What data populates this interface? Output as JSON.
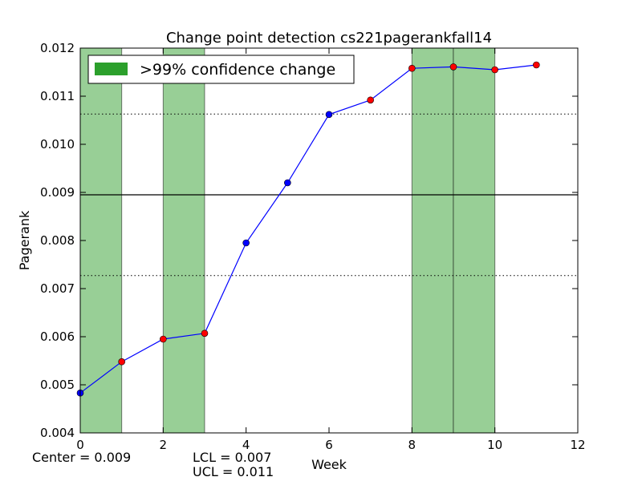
{
  "chart_data": {
    "type": "line",
    "title": "Change point detection cs221pagerankfall14",
    "xlabel": "Week",
    "ylabel": "Pagerank",
    "xlim": [
      0,
      12
    ],
    "ylim": [
      0.004,
      0.012
    ],
    "xticks": [
      0,
      2,
      4,
      6,
      8,
      10,
      12
    ],
    "xtick_labels": [
      "0",
      "2",
      "4",
      "6",
      "8",
      "10",
      "12"
    ],
    "yticks": [
      0.004,
      0.005,
      0.006,
      0.007,
      0.008,
      0.009,
      0.01,
      0.011,
      0.012
    ],
    "ytick_labels": [
      "0.004",
      "0.005",
      "0.006",
      "0.007",
      "0.008",
      "0.009",
      "0.010",
      "0.011",
      "0.012"
    ],
    "grid": false,
    "line_color": "#0000ff",
    "points": [
      {
        "x": 0,
        "y": 0.00483,
        "color": "#0000ff"
      },
      {
        "x": 1,
        "y": 0.00548,
        "color": "#ff0000"
      },
      {
        "x": 2,
        "y": 0.00595,
        "color": "#ff0000"
      },
      {
        "x": 3,
        "y": 0.00607,
        "color": "#ff0000"
      },
      {
        "x": 4,
        "y": 0.00795,
        "color": "#0000ff"
      },
      {
        "x": 5,
        "y": 0.0092,
        "color": "#0000ff"
      },
      {
        "x": 6,
        "y": 0.01062,
        "color": "#0000ff"
      },
      {
        "x": 7,
        "y": 0.01092,
        "color": "#ff0000"
      },
      {
        "x": 8,
        "y": 0.01158,
        "color": "#ff0000"
      },
      {
        "x": 9,
        "y": 0.01161,
        "color": "#ff0000"
      },
      {
        "x": 10,
        "y": 0.01155,
        "color": "#ff0000"
      },
      {
        "x": 11,
        "y": 0.01165,
        "color": "#ff0000"
      }
    ],
    "center_line": 0.00895,
    "limit_lines": [
      0.00727,
      0.01063
    ],
    "change_regions": [
      [
        0,
        1
      ],
      [
        2,
        3
      ],
      [
        8,
        9
      ],
      [
        9,
        10
      ]
    ],
    "region_color": "#98cf96",
    "legend": {
      "label": ">99% confidence change",
      "color": "#2ca02c",
      "placement": "top-left"
    },
    "annotations": {
      "center": "Center = 0.009",
      "lcl": "LCL = 0.007",
      "ucl": "UCL = 0.011"
    }
  }
}
